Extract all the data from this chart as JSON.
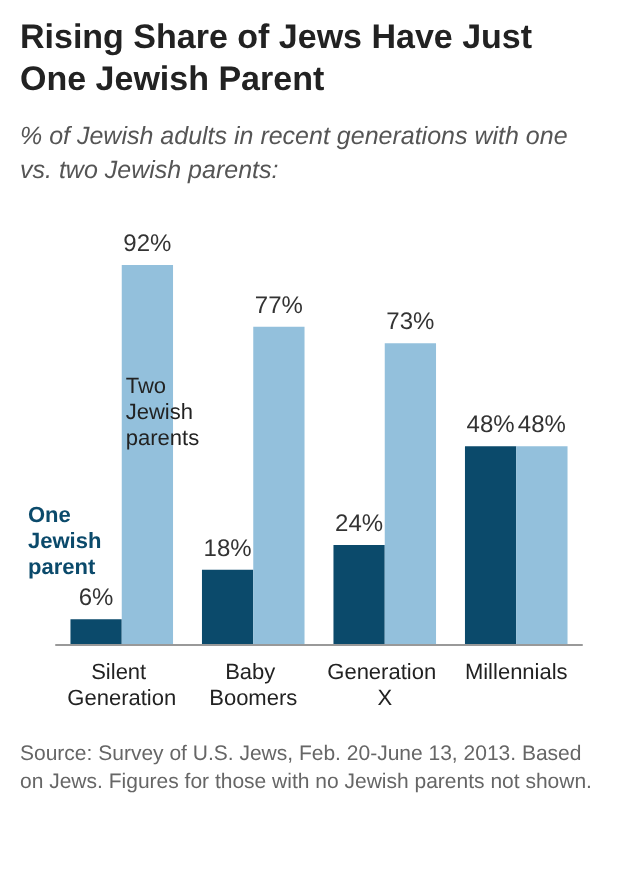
{
  "chart_data": {
    "type": "bar",
    "title": "Rising Share of Jews Have Just One Jewish Parent",
    "subtitle": "% of Jewish adults in recent generations with one vs. two Jewish parents:",
    "categories": [
      "Silent Generation",
      "Baby Boomers",
      "Generation X",
      "Millennials"
    ],
    "series": [
      {
        "name": "One Jewish parent",
        "color": "#0b4a6b",
        "values": [
          6,
          18,
          24,
          48
        ],
        "value_labels": [
          "6%",
          "18%",
          "24%",
          "48%"
        ]
      },
      {
        "name": "Two Jewish parents",
        "color": "#93c0dc",
        "values": [
          92,
          77,
          73,
          48
        ],
        "value_labels": [
          "92%",
          "77%",
          "73%",
          "48%"
        ]
      }
    ],
    "annotations": [
      "Source: Survey of U.S. Jews, Feb. 20-June 13, 2013. Based on Jews. Figures for those with no Jewish parents not shown."
    ],
    "legend": false
  }
}
